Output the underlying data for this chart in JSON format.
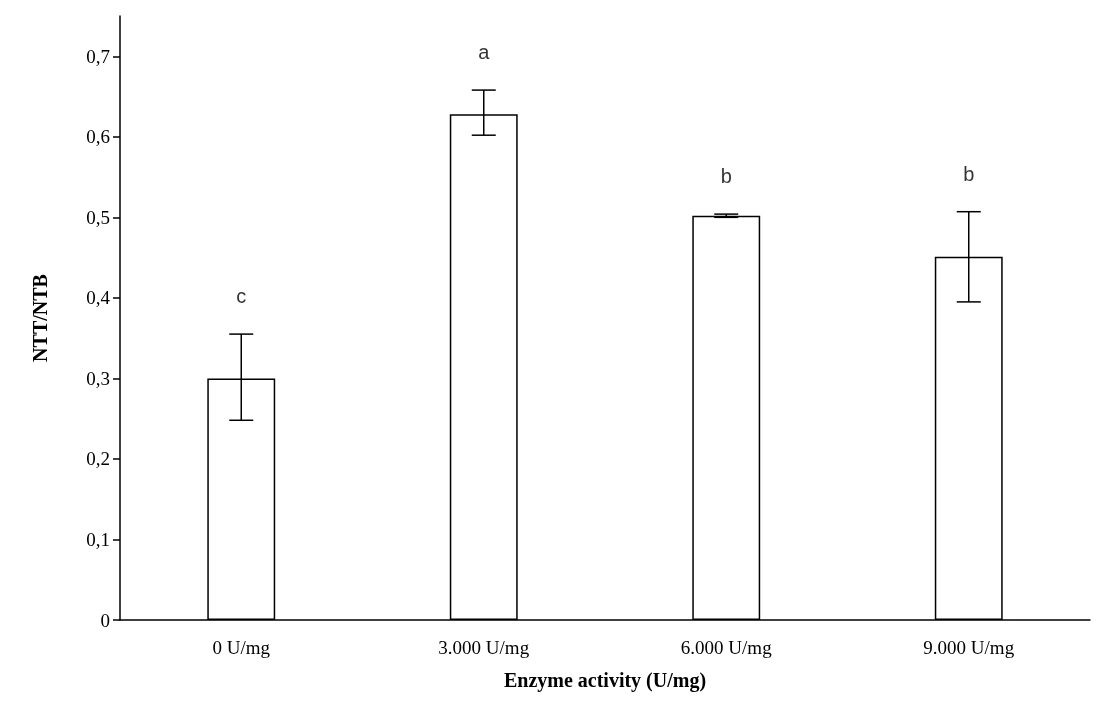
{
  "chart_data": {
    "type": "bar",
    "xlabel": "Enzyme activity (U/mg)",
    "ylabel": "NTT/NTB",
    "categories": [
      "0 U/mg",
      "3.000 U/mg",
      "6.000 U/mg",
      "9.000 U/mg"
    ],
    "values": [
      0.3,
      0.628,
      0.502,
      0.451
    ],
    "color": "#ffffff",
    "errors": [
      [
        0.248,
        0.355
      ],
      [
        0.602,
        0.658
      ],
      [
        0.5,
        0.504
      ],
      [
        0.395,
        0.507
      ]
    ],
    "ylim": [
      0,
      0.75
    ],
    "yticks": [
      0,
      {
        "value": 0.1,
        "label": "0,1"
      },
      {
        "value": 0.2,
        "label": "0,2"
      },
      {
        "value": 0.3,
        "label": "0,3"
      },
      {
        "value": 0.4,
        "label": "0,4"
      },
      {
        "value": 0.5,
        "label": "0,5"
      },
      {
        "value": 0.6,
        "label": "0,6"
      },
      {
        "value": 0.7,
        "label": "0,7"
      }
    ],
    "annotations": [
      "c",
      "a",
      "b",
      "b"
    ]
  }
}
